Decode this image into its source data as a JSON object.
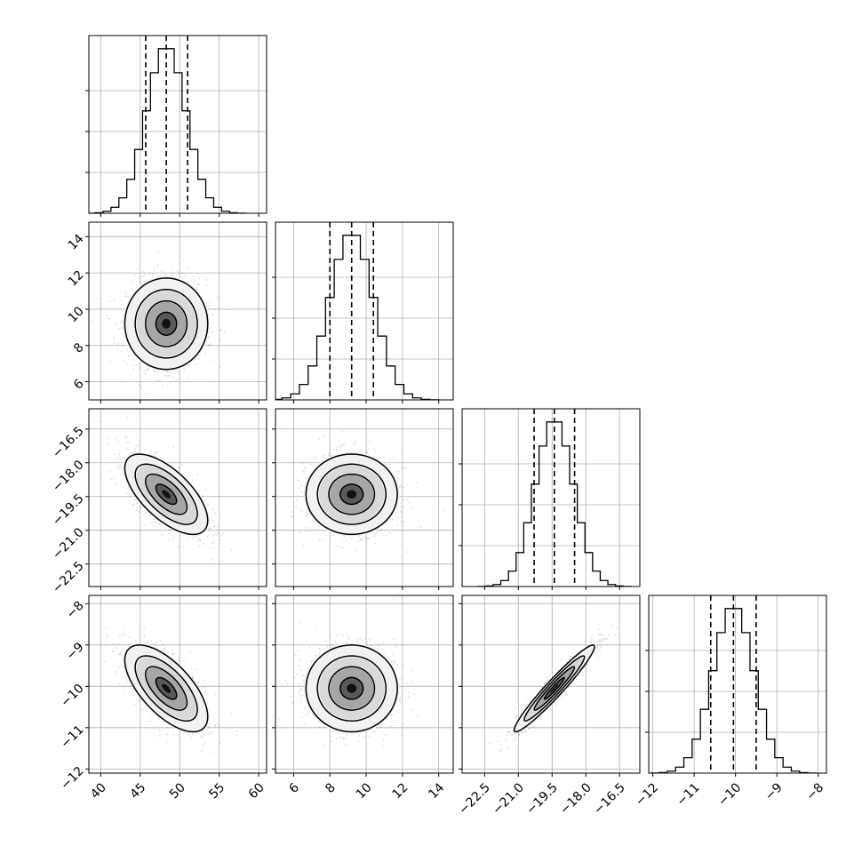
{
  "chart_data": {
    "type": "corner",
    "grid": true,
    "parameters": [
      {
        "range": [
          38.5,
          61.0
        ],
        "ticks": [
          40,
          45,
          50,
          55,
          60
        ],
        "tick_labels": [
          "40",
          "45",
          "50",
          "55",
          "60"
        ],
        "mean": 48.3,
        "sigma": 2.5,
        "quantiles": [
          45.7,
          48.3,
          51.0
        ]
      },
      {
        "range": [
          5.0,
          14.8
        ],
        "ticks": [
          6,
          8,
          10,
          12,
          14
        ],
        "tick_labels": [
          "6",
          "8",
          "10",
          "12",
          "14"
        ],
        "mean": 9.2,
        "sigma": 1.2,
        "quantiles": [
          8.0,
          9.2,
          10.4
        ]
      },
      {
        "range": [
          -23.5,
          -15.6
        ],
        "ticks": [
          -22.5,
          -21.0,
          -19.5,
          -18.0,
          -16.5
        ],
        "tick_labels": [
          "−22.5",
          "−21.0",
          "−19.5",
          "−18.0",
          "−16.5"
        ],
        "mean": -19.4,
        "sigma": 0.85,
        "quantiles": [
          -20.3,
          -19.4,
          -18.5
        ]
      },
      {
        "range": [
          -12.1,
          -7.8
        ],
        "ticks": [
          -12,
          -11,
          -10,
          -9,
          -8
        ],
        "tick_labels": [
          "−12",
          "−11",
          "−10",
          "−9",
          "−8"
        ],
        "mean": -10.05,
        "sigma": 0.5,
        "quantiles": [
          -10.6,
          -10.05,
          -9.5
        ]
      }
    ],
    "correlations": [
      [
        1,
        0,
        -0.65,
        -0.65
      ],
      [
        0,
        1,
        0,
        0
      ],
      [
        -0.65,
        0,
        1,
        0.96
      ],
      [
        -0.65,
        0,
        0.96,
        1
      ]
    ],
    "histogram_bins": 20,
    "histogram_color": "#000000",
    "contour_levels_sigma": [
      0.5,
      1.0,
      1.5,
      2.0
    ]
  }
}
